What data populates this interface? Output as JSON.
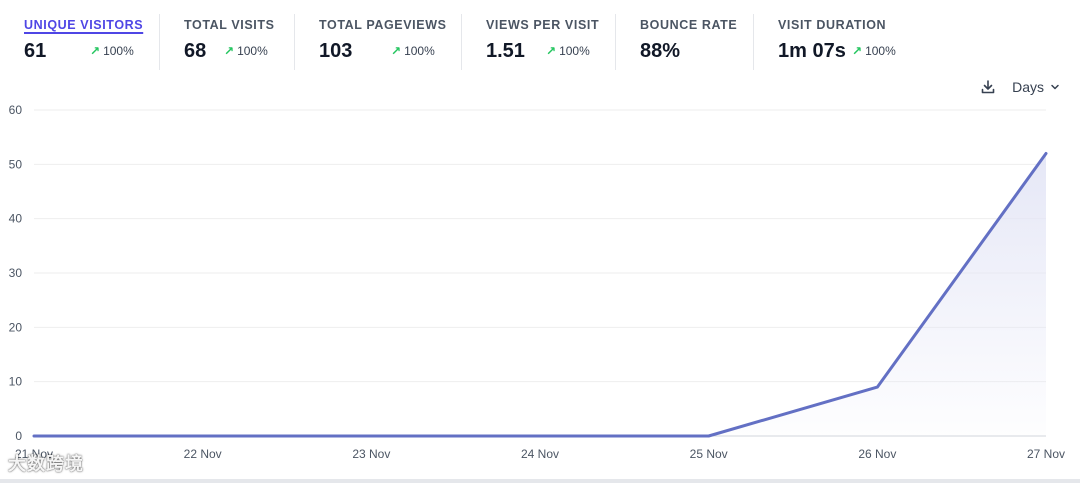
{
  "stats": [
    {
      "label": "UNIQUE VISITORS",
      "value": "61",
      "change": "100%",
      "active": true
    },
    {
      "label": "TOTAL VISITS",
      "value": "68",
      "change": "100%"
    },
    {
      "label": "TOTAL PAGEVIEWS",
      "value": "103",
      "change": "100%"
    },
    {
      "label": "VIEWS PER VISIT",
      "value": "1.51",
      "change": "100%"
    },
    {
      "label": "BOUNCE RATE",
      "value": "88%",
      "change": null
    },
    {
      "label": "VISIT DURATION",
      "value": "1m 07s",
      "change": "100%"
    }
  ],
  "controls": {
    "download_icon": "download-icon",
    "interval_label": "Days"
  },
  "watermark": "大数跨境",
  "colors": {
    "accent": "#6370c4",
    "fill_top": "#e4e6f6",
    "change_up": "#22c55e",
    "grid": "#eeeeee"
  },
  "chart_data": {
    "type": "area",
    "categories": [
      "21 Nov",
      "22 Nov",
      "23 Nov",
      "24 Nov",
      "25 Nov",
      "26 Nov",
      "27 Nov"
    ],
    "series": [
      {
        "name": "Unique visitors",
        "values": [
          0,
          0,
          0,
          0,
          0,
          9,
          52
        ]
      }
    ],
    "yticks": [
      0,
      10,
      20,
      30,
      40,
      50,
      60
    ],
    "ylim": [
      0,
      60
    ],
    "xlabel": "",
    "ylabel": "",
    "grid": true
  }
}
